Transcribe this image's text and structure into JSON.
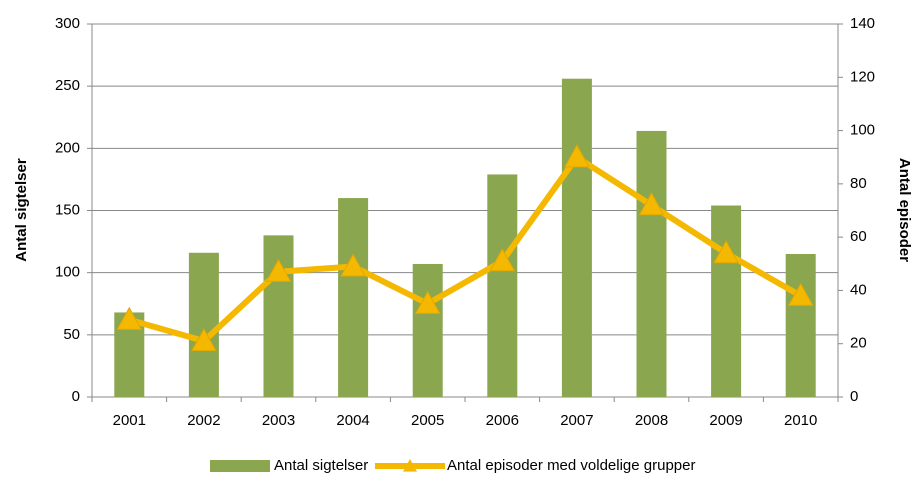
{
  "chart_data": {
    "type": "bar",
    "categories": [
      "2001",
      "2002",
      "2003",
      "2004",
      "2005",
      "2006",
      "2007",
      "2008",
      "2009",
      "2010"
    ],
    "series": [
      {
        "name": "Antal sigtelser",
        "color": "#8aa64e",
        "type": "bar",
        "values": [
          68,
          116,
          130,
          160,
          107,
          179,
          256,
          214,
          154,
          115
        ]
      },
      {
        "name": "Antal episoder med voldelige grupper",
        "color": "#f5b800",
        "type": "line",
        "axis": "y2",
        "values": [
          29,
          21,
          47,
          49,
          35,
          51,
          90,
          72,
          54,
          38
        ]
      }
    ],
    "ylabel": "Antal sigtelser",
    "y2label": "Antal episoder",
    "ylim": [
      0,
      300
    ],
    "yticks": [
      0,
      50,
      100,
      150,
      200,
      250,
      300
    ],
    "y2lim": [
      0,
      140
    ],
    "y2ticks": [
      0,
      20,
      40,
      60,
      80,
      100,
      120,
      140
    ],
    "grid": true,
    "legend": "bottom"
  }
}
